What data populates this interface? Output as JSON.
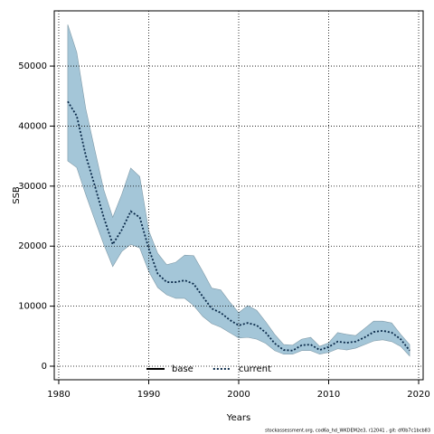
{
  "chart_data": {
    "type": "line",
    "x_label": "Years",
    "y_label": "SSB",
    "footer": "stockassessment.org, cod6a_hd_WKDEM2e3, r12041 , git: df0b7c1bcb83",
    "x": [
      1981,
      1982,
      1983,
      1984,
      1985,
      1986,
      1987,
      1988,
      1989,
      1990,
      1991,
      1992,
      1993,
      1994,
      1995,
      1996,
      1997,
      1998,
      1999,
      2000,
      2001,
      2002,
      2003,
      2004,
      2005,
      2006,
      2007,
      2008,
      2009,
      2010,
      2011,
      2012,
      2013,
      2014,
      2015,
      2016,
      2017,
      2018,
      2019
    ],
    "series": [
      {
        "name": "current",
        "color": "#0a2a4a",
        "dash": "dotted",
        "values": [
          44100,
          41700,
          35100,
          30100,
          24800,
          20300,
          22700,
          25800,
          24800,
          19600,
          15400,
          14000,
          14000,
          14300,
          13700,
          11600,
          9600,
          8900,
          7700,
          6800,
          7200,
          6800,
          5600,
          3800,
          2700,
          2600,
          3500,
          3600,
          2700,
          3200,
          4100,
          3900,
          4100,
          4800,
          5700,
          5900,
          5600,
          4500,
          2600
        ]
      }
    ],
    "band": {
      "color": "#a4c6d8",
      "upper": [
        56900,
        52300,
        42900,
        36100,
        29400,
        24800,
        28600,
        33000,
        31600,
        22600,
        18800,
        16900,
        17300,
        18500,
        18400,
        15800,
        13000,
        12700,
        10700,
        8900,
        10100,
        9300,
        7400,
        5300,
        3600,
        3500,
        4500,
        4800,
        3300,
        3900,
        5600,
        5300,
        5100,
        6300,
        7500,
        7500,
        7200,
        5300,
        3600
      ],
      "lower": [
        34200,
        33100,
        28600,
        24400,
        20300,
        16600,
        19100,
        20300,
        19700,
        15800,
        13100,
        11900,
        11300,
        11300,
        10100,
        8300,
        7100,
        6500,
        5600,
        4700,
        4800,
        4500,
        3800,
        2600,
        2000,
        2000,
        2600,
        2600,
        2000,
        2300,
        2900,
        2700,
        3000,
        3600,
        4200,
        4400,
        4100,
        3300,
        1700
      ]
    },
    "legend": [
      {
        "name": "base",
        "color": "#000000",
        "dash": "solid"
      },
      {
        "name": "current",
        "color": "#0a2a4a",
        "dash": "dotted"
      }
    ],
    "xlim": [
      1979.5,
      2020.5
    ],
    "ylim": [
      -2260,
      59200
    ],
    "xticks": [
      1980,
      1990,
      2000,
      2010,
      2020
    ],
    "yticks": [
      0,
      10000,
      20000,
      30000,
      40000,
      50000
    ],
    "grid": true
  }
}
